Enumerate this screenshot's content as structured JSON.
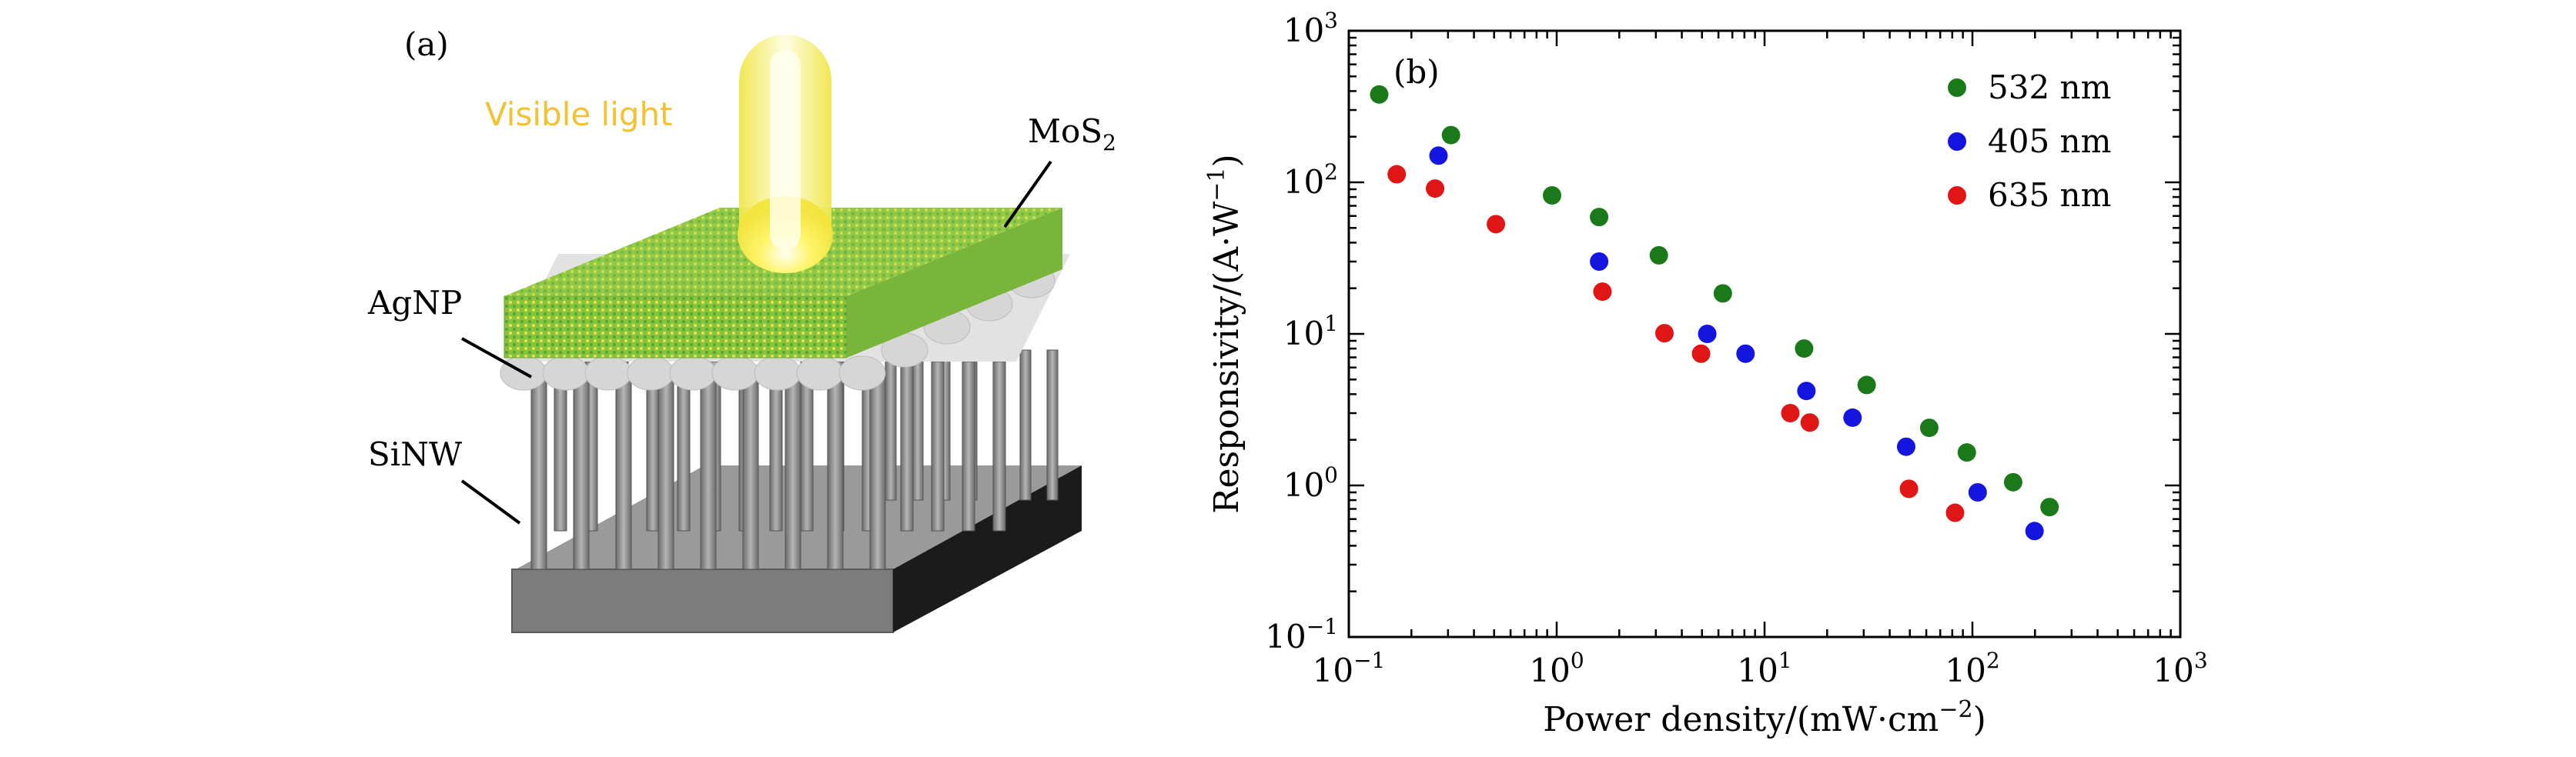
{
  "panel_a": {
    "label": "(a)",
    "light_label": "Visible light",
    "mos2_label": "MoS",
    "mos2_sub": "2",
    "agnp_label": "AgNP",
    "sinw_label": "SiNW",
    "colors": {
      "light": "#f7ef3c",
      "mos2": "#8cc63f",
      "agnp": "#dcdcdc",
      "sinw": "#8a8a8a",
      "substrate": "#7a7a7a",
      "substrate_side": "#1a1a1a"
    }
  },
  "chart_data": {
    "type": "scatter",
    "panel_label": "(b)",
    "xlabel": "Power density/(mW·cm",
    "xlabel_sup": "−2",
    "xlabel_end": ")",
    "ylabel": "Responsivity/(A·W",
    "ylabel_sup": "−1",
    "ylabel_end": ")",
    "xscale": "log",
    "yscale": "log",
    "xlim": [
      0.1,
      1000
    ],
    "ylim": [
      0.1,
      1000
    ],
    "x_ticks": [
      {
        "base": "10",
        "exp": "−1"
      },
      {
        "base": "10",
        "exp": "0"
      },
      {
        "base": "10",
        "exp": "1"
      },
      {
        "base": "10",
        "exp": "2"
      },
      {
        "base": "10",
        "exp": "3"
      }
    ],
    "y_ticks": [
      {
        "base": "10",
        "exp": "−1"
      },
      {
        "base": "10",
        "exp": "0"
      },
      {
        "base": "10",
        "exp": "1"
      },
      {
        "base": "10",
        "exp": "2"
      },
      {
        "base": "10",
        "exp": "3"
      }
    ],
    "grid": false,
    "legend_position": "top-right",
    "series": [
      {
        "name": "532 nm",
        "color": "#1a7a1a",
        "x": [
          0.14,
          0.31,
          0.95,
          1.6,
          3.1,
          6.3,
          15.5,
          31,
          62,
          94,
          157,
          235
        ],
        "y": [
          380,
          205,
          82,
          59,
          33,
          18.5,
          8,
          4.6,
          2.4,
          1.65,
          1.05,
          0.72
        ]
      },
      {
        "name": "405 nm",
        "color": "#1515e0",
        "x": [
          0.27,
          1.6,
          5.3,
          8.1,
          15.9,
          26.5,
          48,
          106,
          199
        ],
        "y": [
          150,
          30,
          10,
          7.4,
          4.2,
          2.8,
          1.8,
          0.9,
          0.5
        ]
      },
      {
        "name": "635 nm",
        "color": "#e01515",
        "x": [
          0.17,
          0.26,
          0.51,
          1.66,
          3.3,
          4.95,
          13.3,
          16.5,
          49.5,
          82.5
        ],
        "y": [
          113,
          91,
          53,
          19,
          10.1,
          7.4,
          3,
          2.6,
          0.95,
          0.66
        ]
      }
    ]
  }
}
